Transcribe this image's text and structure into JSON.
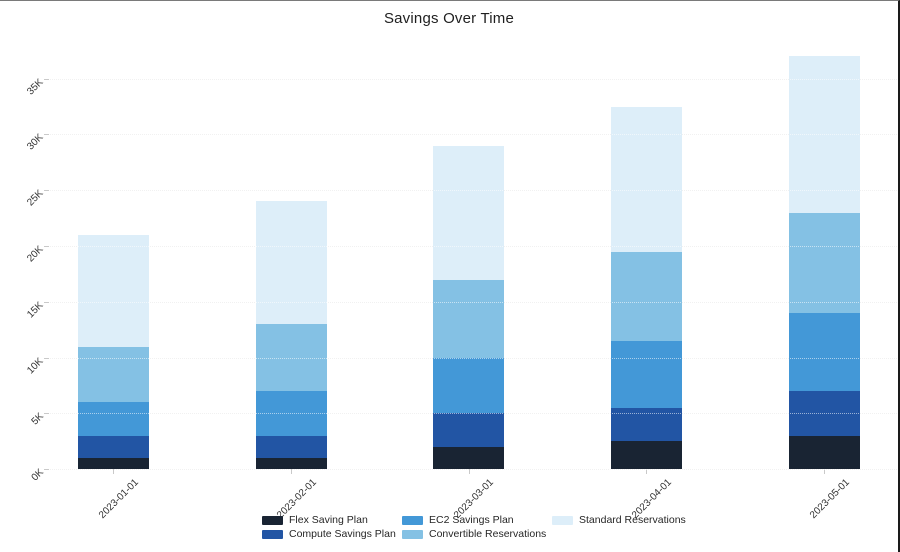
{
  "chart_data": {
    "type": "bar",
    "stacked": true,
    "title": "Savings Over Time",
    "categories": [
      "2023-01-01",
      "2023-02-01",
      "2023-03-01",
      "2023-04-01",
      "2023-05-01"
    ],
    "series": [
      {
        "name": "Flex Saving Plan",
        "color": "#192433",
        "values": [
          1000,
          1000,
          2000,
          2500,
          3000
        ]
      },
      {
        "name": "Compute Savings Plan",
        "color": "#2255a4",
        "values": [
          2000,
          2000,
          3000,
          3000,
          4000
        ]
      },
      {
        "name": "EC2 Savings Plan",
        "color": "#4398d7",
        "values": [
          3000,
          4000,
          5000,
          6000,
          7000
        ]
      },
      {
        "name": "Convertible Reservations",
        "color": "#84c1e4",
        "values": [
          5000,
          6000,
          7000,
          8000,
          9000
        ]
      },
      {
        "name": "Standard Reservations",
        "color": "#ddeef9",
        "values": [
          10000,
          11000,
          12000,
          13000,
          14000
        ]
      }
    ],
    "totals": [
      21000,
      24000,
      29000,
      32500,
      37000
    ],
    "yticks": [
      {
        "label": "0K",
        "value": 0
      },
      {
        "label": "5K",
        "value": 5000
      },
      {
        "label": "10K",
        "value": 10000
      },
      {
        "label": "15K",
        "value": 15000
      },
      {
        "label": "20K",
        "value": 20000
      },
      {
        "label": "25K",
        "value": 25000
      },
      {
        "label": "30K",
        "value": 30000
      },
      {
        "label": "35K",
        "value": 35000
      }
    ],
    "ylim": [
      0,
      39000
    ],
    "grid": "horizontal-dotted",
    "legend_position": "bottom",
    "tick_angle_deg": -45
  }
}
